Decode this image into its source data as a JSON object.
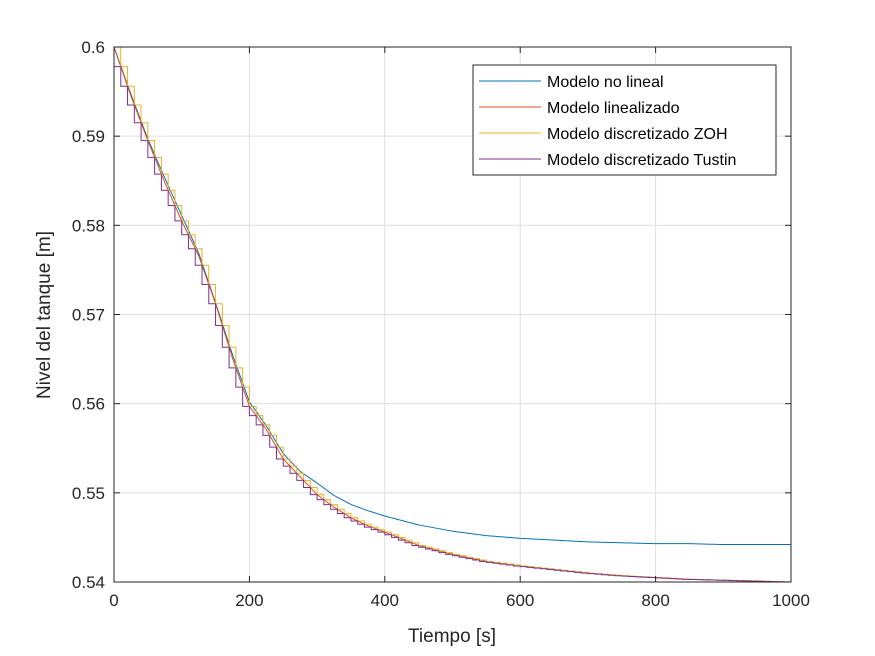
{
  "chart_data": {
    "type": "line",
    "xlabel": "Tiempo [s]",
    "ylabel": "Nivel del tanque [m]",
    "xlim": [
      0,
      1000
    ],
    "ylim": [
      0.54,
      0.6
    ],
    "xticks": [
      0,
      200,
      400,
      600,
      800,
      1000
    ],
    "xtick_labels": [
      "0",
      "200",
      "400",
      "600",
      "800",
      "1000"
    ],
    "yticks": [
      0.54,
      0.55,
      0.56,
      0.57,
      0.58,
      0.59,
      0.6
    ],
    "ytick_labels": [
      "0.54",
      "0.55",
      "0.56",
      "0.57",
      "0.58",
      "0.59",
      "0.6"
    ],
    "grid": true,
    "legend_position": "top-right",
    "series": [
      {
        "name": "Modelo no lineal",
        "color": "#0072BD",
        "style": "continuous",
        "x": [
          0,
          25,
          50,
          75,
          100,
          125,
          150,
          175,
          200,
          225,
          250,
          275,
          300,
          325,
          350,
          375,
          400,
          450,
          500,
          550,
          600,
          650,
          700,
          750,
          800,
          850,
          900,
          950,
          1000
        ],
        "y": [
          0.6,
          0.5947,
          0.5897,
          0.5853,
          0.5811,
          0.5769,
          0.5713,
          0.5655,
          0.5602,
          0.5575,
          0.5544,
          0.5524,
          0.5511,
          0.5497,
          0.5487,
          0.548,
          0.5474,
          0.5464,
          0.5457,
          0.5452,
          0.5449,
          0.5447,
          0.5445,
          0.5444,
          0.5443,
          0.5443,
          0.5442,
          0.5442,
          0.5442
        ]
      },
      {
        "name": "Modelo linealizado",
        "color": "#D95319",
        "style": "continuous",
        "x": [
          0,
          25,
          50,
          75,
          100,
          125,
          150,
          175,
          200,
          225,
          250,
          275,
          300,
          325,
          350,
          375,
          400,
          450,
          500,
          550,
          600,
          650,
          700,
          750,
          800,
          850,
          900,
          950,
          1000
        ],
        "y": [
          0.6,
          0.5945,
          0.5895,
          0.5848,
          0.5805,
          0.5766,
          0.5712,
          0.5651,
          0.5597,
          0.5571,
          0.5538,
          0.5518,
          0.5498,
          0.5484,
          0.5472,
          0.5463,
          0.5456,
          0.5441,
          0.5431,
          0.5423,
          0.5418,
          0.5414,
          0.541,
          0.5407,
          0.5405,
          0.5403,
          0.5402,
          0.5401,
          0.54
        ]
      },
      {
        "name": "Modelo discretizado ZOH",
        "color": "#EDB120",
        "style": "stairs",
        "sample_time": 10,
        "ref": 1
      },
      {
        "name": "Modelo discretizado Tustin",
        "color": "#7E2F8E",
        "style": "stairs",
        "sample_time": 10,
        "ref": 1,
        "lag": true
      }
    ]
  }
}
